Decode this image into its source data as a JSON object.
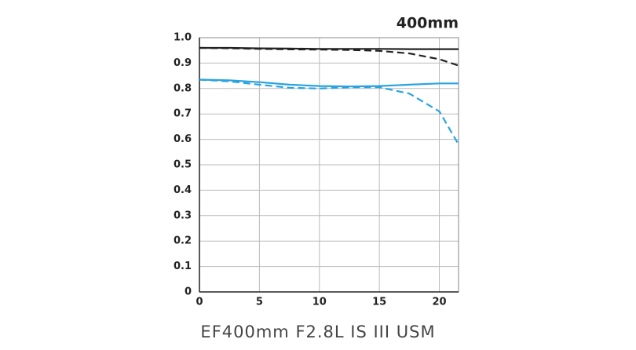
{
  "chart_data": {
    "type": "line",
    "title": "400mm",
    "caption": "EF400mm F2.8L IS III USM",
    "x": [
      0,
      2.5,
      5,
      7.5,
      10,
      12.5,
      15,
      17.5,
      20,
      21.6
    ],
    "series": [
      {
        "color": "#222222",
        "dash": false,
        "values": [
          0.96,
          0.96,
          0.958,
          0.957,
          0.956,
          0.956,
          0.956,
          0.955,
          0.955,
          0.955
        ]
      },
      {
        "color": "#222222",
        "dash": true,
        "values": [
          0.96,
          0.958,
          0.956,
          0.954,
          0.953,
          0.952,
          0.948,
          0.938,
          0.915,
          0.89
        ]
      },
      {
        "color": "#29a3e0",
        "dash": false,
        "values": [
          0.835,
          0.832,
          0.825,
          0.815,
          0.81,
          0.808,
          0.81,
          0.815,
          0.82,
          0.82
        ]
      },
      {
        "color": "#29a3e0",
        "dash": true,
        "values": [
          0.835,
          0.828,
          0.815,
          0.803,
          0.8,
          0.805,
          0.805,
          0.78,
          0.71,
          0.58
        ]
      }
    ],
    "xlim": [
      0,
      21.6
    ],
    "xticks": [
      0,
      5,
      10,
      15,
      20
    ],
    "ylim": [
      0,
      1
    ],
    "yticks": [
      0,
      0.1,
      0.2,
      0.3,
      0.4,
      0.5,
      0.6,
      0.7,
      0.8,
      0.9,
      {
        "value": 1,
        "label": "1.0"
      }
    ],
    "grid": true
  }
}
